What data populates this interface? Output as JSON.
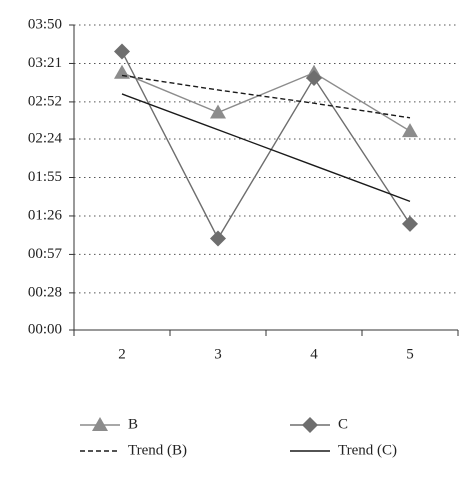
{
  "chart_data": {
    "type": "line",
    "categories": [
      "2",
      "3",
      "4",
      "5"
    ],
    "series": [
      {
        "name": "B",
        "color": "#8c8c8c",
        "marker": "triangle",
        "dash": "solid",
        "values": [
          194,
          164,
          194,
          150
        ]
      },
      {
        "name": "C",
        "color": "#6e6e6e",
        "marker": "diamond",
        "dash": "solid",
        "values": [
          210,
          69,
          190,
          80
        ]
      },
      {
        "name": "Trend (B)",
        "color": "#1a1a1a",
        "marker": "none",
        "dash": "dashed",
        "values": [
          192,
          181,
          171,
          160
        ]
      },
      {
        "name": "Trend (C)",
        "color": "#1a1a1a",
        "marker": "none",
        "dash": "solid",
        "values": [
          178,
          151,
          124,
          97
        ]
      }
    ],
    "ylim": [
      0,
      230
    ],
    "yticks": [
      {
        "value": 0,
        "label": "00:00"
      },
      {
        "value": 28,
        "label": "00:28"
      },
      {
        "value": 57,
        "label": "00:57"
      },
      {
        "value": 86,
        "label": "01:26"
      },
      {
        "value": 115,
        "label": "01:55"
      },
      {
        "value": 144,
        "label": "02:24"
      },
      {
        "value": 172,
        "label": "02:52"
      },
      {
        "value": 201,
        "label": "03:21"
      },
      {
        "value": 230,
        "label": "03:50"
      }
    ],
    "grid": true,
    "legend": "bottom"
  }
}
